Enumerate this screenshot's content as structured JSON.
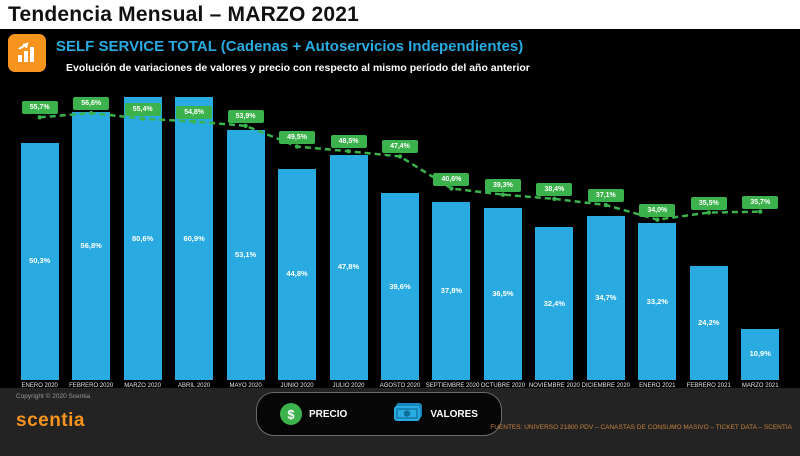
{
  "header": {
    "title": "Tendencia Mensual – MARZO 2021"
  },
  "section": {
    "title": "SELF SERVICE TOTAL (Cadenas + Autoservicios Independientes)",
    "subtitle": "Evolución de variaciones de valores y precio con respecto al mismo período del año anterior"
  },
  "chart_data": {
    "type": "combo-bar-line",
    "title": "Evolución de variaciones de valores y precio con respecto al mismo período del año anterior",
    "categories": [
      "ENERO 2020",
      "FEBRERO 2020",
      "MARZO 2020",
      "ABRIL 2020",
      "MAYO 2020",
      "JUNIO 2020",
      "JULIO 2020",
      "AGOSTO 2020",
      "SEPTIEMBRE 2020",
      "OCTUBRE 2020",
      "NOVIEMBRE 2020",
      "DICIEMBRE 2020",
      "ENERO 2021",
      "FEBRERO 2021",
      "MARZO 2021"
    ],
    "series": [
      {
        "name": "VALORES",
        "type": "bar",
        "color": "#29abe2",
        "values": [
          50.3,
          56.8,
          80.6,
          60.9,
          53.1,
          44.8,
          47.8,
          39.6,
          37.8,
          36.5,
          32.4,
          34.7,
          33.2,
          24.2,
          10.9
        ],
        "labels": [
          "50,3%",
          "56,8%",
          "80,6%",
          "60,9%",
          "53,1%",
          "44,8%",
          "47,8%",
          "39,6%",
          "37,8%",
          "36,5%",
          "32,4%",
          "34,7%",
          "33,2%",
          "24,2%",
          "10,9%"
        ]
      },
      {
        "name": "PRECIO",
        "type": "line",
        "color": "#3cb24c",
        "values": [
          55.7,
          56.6,
          55.4,
          54.8,
          53.9,
          49.5,
          48.5,
          47.4,
          40.6,
          39.3,
          38.4,
          37.1,
          34.0,
          35.5,
          35.7
        ],
        "labels": [
          "55,7%",
          "56,6%",
          "55,4%",
          "54,8%",
          "53,9%",
          "49,5%",
          "48,5%",
          "47,4%",
          "40,6%",
          "39,3%",
          "38,4%",
          "37,1%",
          "34,0%",
          "35,5%",
          "35,7%"
        ]
      }
    ],
    "ylim": [
      0,
      60
    ],
    "grid": false,
    "legend_position": "bottom",
    "layout_note": "bars exceeding the 60% axis max are clipped at the plot top"
  },
  "footer": {
    "copyright": "Copyright © 2020 Scentia",
    "logo": "scentia",
    "legend": {
      "precio": "PRECIO",
      "valores": "VALORES"
    },
    "sources": "FUENTES: UNIVERSO 21800 PDV – CANASTAS DE CONSUMO MASIVO – TICKET DATA – SCENTIA"
  }
}
